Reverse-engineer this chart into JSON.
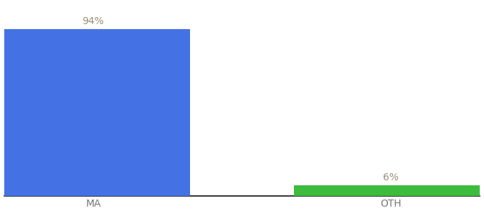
{
  "categories": [
    "MA",
    "OTH"
  ],
  "values": [
    94,
    6
  ],
  "bar_colors": [
    "#4472e4",
    "#3dbb3d"
  ],
  "label_texts": [
    "94%",
    "6%"
  ],
  "label_color": "#9b8f7a",
  "ylim": [
    0,
    108
  ],
  "background_color": "#ffffff",
  "bar_width": 0.65,
  "label_fontsize": 10,
  "tick_fontsize": 10,
  "tick_color": "#777777",
  "xlim": [
    -0.3,
    1.3
  ]
}
